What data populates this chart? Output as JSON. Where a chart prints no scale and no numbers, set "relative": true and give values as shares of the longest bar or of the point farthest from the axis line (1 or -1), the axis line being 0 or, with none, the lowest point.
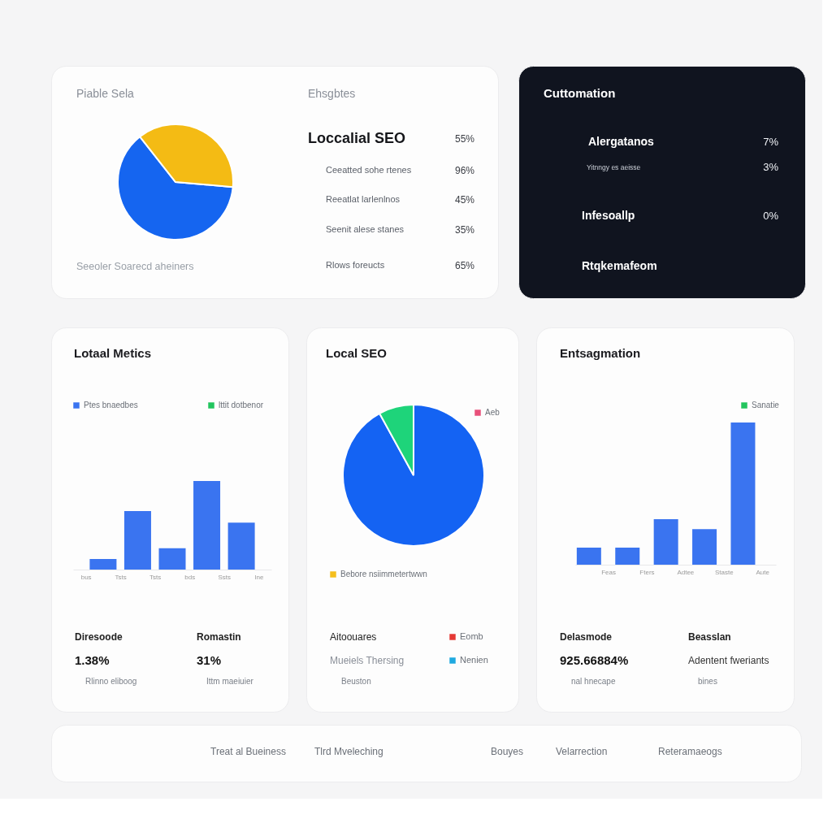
{
  "chart_data": [
    {
      "type": "pie",
      "title": "Piable Sela",
      "categories": [
        null,
        null
      ],
      "values": [
        63,
        37
      ],
      "colors": [
        "#1565f0",
        "#f4bb14"
      ],
      "annotations": [
        "Seeoler Soarecd aheiners"
      ]
    },
    {
      "type": "other",
      "title": "Ehsgbtes",
      "annotations": [
        "Loccalial SEO",
        "55%",
        "Ceeatted sohe rtenes",
        "96%",
        "Reeatlat larlenlnos",
        "45%",
        "Seenit alese stanes",
        "35%",
        "Rlows foreucts",
        "65%"
      ]
    },
    {
      "type": "other",
      "title": "Cuttomation",
      "annotations": [
        "Alergatanos",
        "7%",
        "Yitnngy es aeisse",
        "3%",
        "Infesoallp",
        "0%",
        "Rtqkemafeom"
      ]
    },
    {
      "type": "bar",
      "title": "Lotaal Metics",
      "relative": true,
      "categories": [
        "bus",
        null,
        "Tsts",
        null,
        "Tsts",
        null,
        "bds",
        null,
        "Ssts",
        null,
        "Ine"
      ],
      "series": [
        {
          "name": "Ptes bnaedbes",
          "color": "#3a74f0",
          "values": [
            null,
            0.12,
            null,
            0.66,
            null,
            0.24,
            null,
            1,
            null,
            0.53,
            null
          ]
        },
        {
          "name": "lttit dotbenor",
          "color": "#22c55e",
          "values": [
            null,
            null,
            null,
            null,
            null,
            null,
            null,
            null,
            null,
            null,
            null
          ]
        }
      ],
      "legend": "top",
      "annotations": [
        "Diresoode",
        "1.38%",
        "Rlinno eliboog",
        "Romastin",
        "31%",
        "Ittm maeiuier"
      ]
    },
    {
      "type": "pie",
      "title": "Local SEO",
      "categories": [
        null,
        null,
        "Aeb",
        "Bebore nsiimmetertwwn",
        "Eomb",
        "Nenien"
      ],
      "values": [
        92,
        8,
        null,
        null,
        null,
        null
      ],
      "colors": [
        "#1463f3",
        "#1ed47a",
        "#e8507a",
        "#f5bf1c",
        "#e53935",
        "#1fa9e0"
      ],
      "legend": "bottom right",
      "annotations": [
        "Aitoouares",
        "Mueiels Thersing",
        "Beuston"
      ]
    },
    {
      "type": "bar",
      "title": "Entsagmation",
      "relative": true,
      "categories": [
        null,
        "Feas",
        null,
        "Fters",
        null,
        "Adtee",
        null,
        "Staste",
        null,
        "Aute"
      ],
      "series": [
        {
          "color": "#3a74f0",
          "values": [
            0.12,
            null,
            0.12,
            null,
            0.32,
            null,
            0.25,
            null,
            1,
            null
          ]
        },
        {
          "name": "Sanatie",
          "color": "#22c55e",
          "values": [
            null,
            null,
            null,
            null,
            null,
            null,
            null,
            null,
            null,
            null
          ]
        }
      ],
      "legend": "top right",
      "annotations": [
        "Delasmode",
        "925.66884%",
        "nal hnecape",
        "Beasslan",
        "Adentent fweriants",
        "bines"
      ]
    },
    {
      "type": "other",
      "annotations": [
        "Treat al Bueiness",
        "Tlrd Mveleching",
        "Bouyes",
        "Velarrection",
        "Reteramaeogs"
      ]
    }
  ]
}
